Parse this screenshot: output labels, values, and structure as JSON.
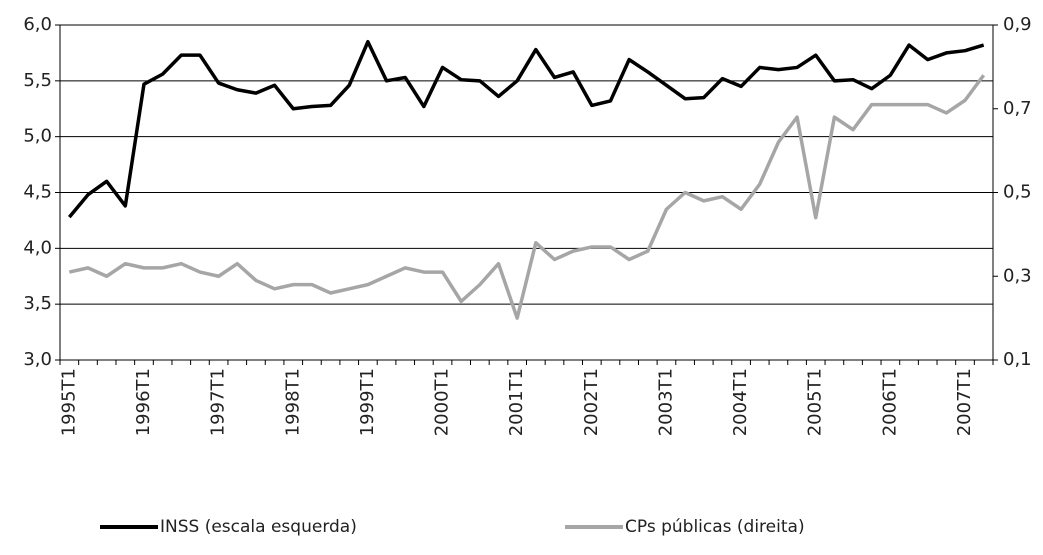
{
  "chart_data": {
    "type": "line",
    "categories": [
      "1995T1",
      null,
      null,
      null,
      "1996T1",
      null,
      null,
      null,
      "1997T1",
      null,
      null,
      null,
      "1998T1",
      null,
      null,
      null,
      "1999T1",
      null,
      null,
      null,
      "2000T1",
      null,
      null,
      null,
      "2001T1",
      null,
      null,
      null,
      "2002T1",
      null,
      null,
      null,
      "2003T1",
      null,
      null,
      null,
      "2004T1",
      null,
      null,
      null,
      "2005T1",
      null,
      null,
      null,
      "2006T1",
      null,
      null,
      null,
      "2007T1",
      null
    ],
    "series": [
      {
        "name": "INSS (escala esquerda)",
        "color": "#000000",
        "axis": "y",
        "values": [
          4.28,
          4.48,
          4.6,
          4.38,
          5.47,
          5.56,
          5.73,
          5.73,
          5.48,
          5.42,
          5.39,
          5.46,
          5.25,
          5.27,
          5.28,
          5.46,
          5.85,
          5.5,
          5.53,
          5.27,
          5.62,
          5.51,
          5.5,
          5.36,
          5.5,
          5.78,
          5.53,
          5.58,
          5.28,
          5.32,
          5.69,
          5.58,
          5.46,
          5.34,
          5.35,
          5.52,
          5.45,
          5.62,
          5.6,
          5.62,
          5.73,
          5.5,
          5.51,
          5.43,
          5.55,
          5.82,
          5.69,
          5.75,
          5.77,
          5.82
        ]
      },
      {
        "name": "CPs públicas (direita)",
        "color": "#a6a6a6",
        "axis": "y2",
        "values": [
          0.31,
          0.32,
          0.3,
          0.33,
          0.32,
          0.32,
          0.33,
          0.31,
          0.3,
          0.33,
          0.29,
          0.27,
          0.28,
          0.28,
          0.26,
          0.27,
          0.28,
          0.3,
          0.32,
          0.31,
          0.31,
          0.24,
          0.28,
          0.33,
          0.2,
          0.38,
          0.34,
          0.36,
          0.37,
          0.37,
          0.34,
          0.36,
          0.46,
          0.5,
          0.48,
          0.49,
          0.46,
          0.52,
          0.62,
          0.68,
          0.44,
          0.68,
          0.65,
          0.71,
          0.71,
          0.71,
          0.71,
          0.69,
          0.72,
          0.78
        ]
      }
    ],
    "ylim": [
      3.0,
      6.0
    ],
    "yticks": [
      {
        "value": 3.0,
        "label": "3,0"
      },
      {
        "value": 3.5,
        "label": "3,5"
      },
      {
        "value": 4.0,
        "label": "4,0"
      },
      {
        "value": 4.5,
        "label": "4,5"
      },
      {
        "value": 5.0,
        "label": "5,0"
      },
      {
        "value": 5.5,
        "label": "5,5"
      },
      {
        "value": 6.0,
        "label": "6,0"
      }
    ],
    "y2lim": [
      0.1,
      0.9
    ],
    "y2ticks": [
      {
        "value": 0.1,
        "label": "0,1"
      },
      {
        "value": 0.3,
        "label": "0,3"
      },
      {
        "value": 0.5,
        "label": "0,5"
      },
      {
        "value": 0.7,
        "label": "0,7"
      },
      {
        "value": 0.9,
        "label": "0,9"
      }
    ],
    "grid": true,
    "legend": "bottom"
  }
}
